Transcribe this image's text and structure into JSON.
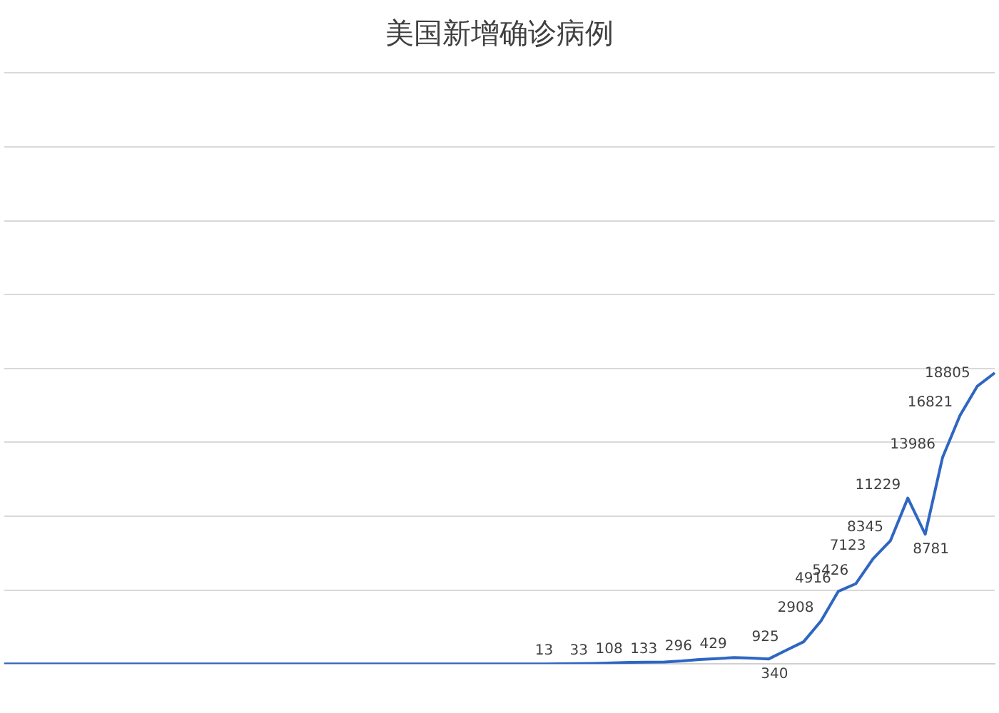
{
  "chart_data": {
    "type": "line",
    "title": "美国新增确诊病例",
    "categories": [
      null,
      null,
      null,
      null,
      null,
      null,
      null,
      null,
      null,
      null,
      null,
      null,
      null,
      null,
      null,
      null,
      null,
      null,
      null,
      null,
      null,
      null,
      null,
      null,
      null,
      null,
      null,
      null,
      null,
      null,
      null,
      null,
      null,
      null,
      null,
      null,
      null,
      null,
      null,
      null,
      null,
      null,
      null,
      null,
      null,
      null,
      null,
      null,
      null,
      null,
      null,
      null,
      null,
      null,
      null,
      null,
      null,
      null
    ],
    "series": [
      {
        "color": "#2f66c2",
        "values": [
          0,
          0,
          0,
          0,
          0,
          0,
          0,
          0,
          0,
          0,
          0,
          0,
          0,
          0,
          0,
          0,
          0,
          0,
          0,
          0,
          0,
          0,
          0,
          0,
          0,
          0,
          0,
          0,
          0,
          0,
          0,
          0,
          13,
          20,
          33,
          70,
          108,
          120,
          133,
          200,
          296,
          360,
          429,
          400,
          340,
          925,
          1500,
          2908,
          4916,
          5426,
          7123,
          8345,
          11229,
          8781,
          13986,
          16821,
          18805,
          19700
        ],
        "value_labels": [
          null,
          null,
          null,
          null,
          null,
          null,
          null,
          null,
          null,
          null,
          null,
          null,
          null,
          null,
          null,
          null,
          null,
          null,
          null,
          null,
          null,
          null,
          null,
          null,
          null,
          null,
          null,
          null,
          null,
          null,
          null,
          null,
          "13",
          null,
          "33",
          null,
          "108",
          null,
          "133",
          null,
          "296",
          null,
          "429",
          null,
          "340",
          "925",
          null,
          "2908",
          "4916",
          "5426",
          "7123",
          "8345",
          "11229",
          "8781",
          "13986",
          "16821",
          "18805",
          null
        ]
      }
    ],
    "ylim": [
      0,
      40000
    ],
    "yticks": [
      {
        "value": 0,
        "label": null
      },
      {
        "value": 5000,
        "label": null
      },
      {
        "value": 10000,
        "label": null
      },
      {
        "value": 15000,
        "label": null
      },
      {
        "value": 20000,
        "label": null
      },
      {
        "value": 25000,
        "label": null
      },
      {
        "value": 30000,
        "label": null
      },
      {
        "value": 35000,
        "label": null
      },
      {
        "value": 40000,
        "label": null
      }
    ],
    "grid": "y",
    "legend": false,
    "marker": "none",
    "line_style": "solid"
  }
}
